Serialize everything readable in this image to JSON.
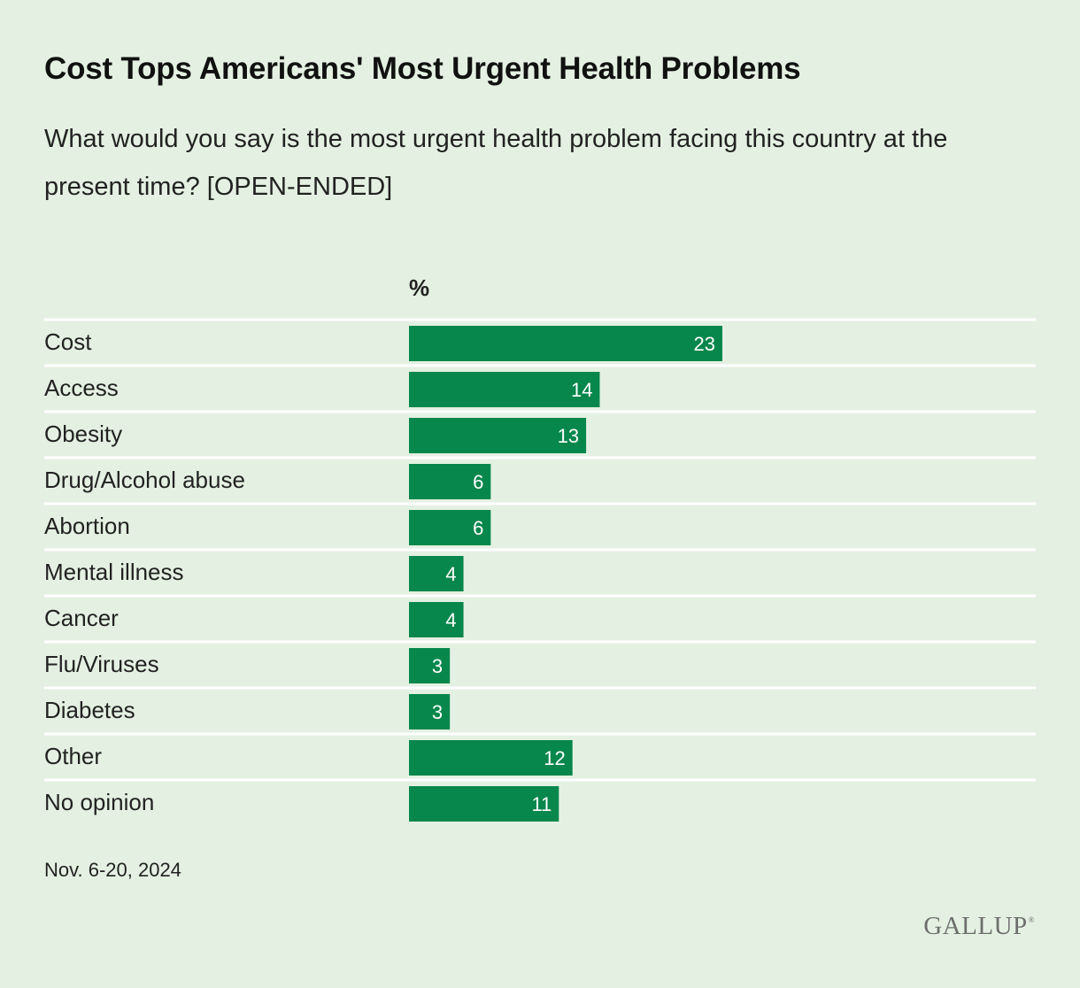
{
  "title": "Cost Tops Americans' Most Urgent Health Problems",
  "subtitle": "What would you say is the most urgent health problem facing this country at the present time? [OPEN-ENDED]",
  "unit_label": "%",
  "date_note": "Nov. 6-20, 2024",
  "logo": "GALLUP",
  "colors": {
    "bar": "#07874b",
    "separator": "#ffffff",
    "background": "#e4f1e2"
  },
  "chart_data": {
    "type": "bar",
    "orientation": "horizontal",
    "categories": [
      "Cost",
      "Access",
      "Obesity",
      "Drug/Alcohol abuse",
      "Abortion",
      "Mental illness",
      "Cancer",
      "Flu/Viruses",
      "Diabetes",
      "Other",
      "No opinion"
    ],
    "values": [
      23,
      14,
      13,
      6,
      6,
      4,
      4,
      3,
      3,
      12,
      11
    ],
    "xlim": [
      0,
      46
    ],
    "grid": false,
    "legend": "none",
    "data_labels": true
  }
}
